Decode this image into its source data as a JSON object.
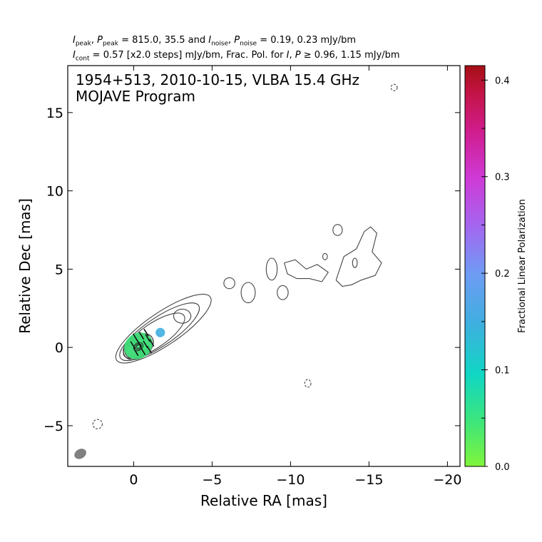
{
  "header": {
    "line1": {
      "i_peak_sub": "peak",
      "p_peak_sub": "peak",
      "peak_values": "= 815.0, 35.5 and",
      "i_noise_sub": "noise",
      "p_noise_sub": "noise",
      "noise_values": "= 0.19, 0.23 mJy/bm"
    },
    "line2": {
      "i_cont_sub": "cont",
      "cont_text": "= 0.57 [x2.0 steps] mJy/bm, Frac. Pol. for",
      "geq_values": "≥ 0.96, 1.15 mJy/bm"
    }
  },
  "chart_data": {
    "type": "contour",
    "title": "1954+513, 2010-10-15, VLBA 15.4 GHz",
    "subtitle": "MOJAVE Program",
    "xlabel": "Relative RA [mas]",
    "ylabel": "Relative Dec [mas]",
    "xlim": [
      4.2,
      -20.8
    ],
    "ylim": [
      -7.6,
      18.0
    ],
    "xticks": [
      0,
      -5,
      -10,
      -15,
      -20
    ],
    "xtick_labels": [
      "0",
      "−5",
      "−10",
      "−15",
      "−20"
    ],
    "yticks": [
      -5,
      0,
      5,
      10,
      15
    ],
    "ytick_labels": [
      "−5",
      "0",
      "5",
      "10",
      "15"
    ],
    "grid": false,
    "colorbar": {
      "label": "Fractional Linear Polarization",
      "range": [
        0.0,
        0.415
      ],
      "ticks": [
        0.0,
        0.1,
        0.2,
        0.3,
        0.4
      ],
      "tick_labels": [
        "0.0",
        "0.1",
        "0.2",
        "0.3",
        "0.4"
      ],
      "colors": [
        "#80f53a",
        "#3ee67a",
        "#10d6c4",
        "#40aee0",
        "#6e9cf4",
        "#a466f0",
        "#cf3ad6",
        "#cf1c8a",
        "#c41447",
        "#a50f15"
      ]
    },
    "core": {
      "x": -0.3,
      "y": 0.05,
      "peak_mjy_per_beam": 815.0
    },
    "beam": {
      "x": 3.4,
      "y": -6.8,
      "major_mas": 0.8,
      "minor_mas": 0.6,
      "pa_deg": -30
    },
    "contour_base_mjy_per_beam": 0.57,
    "contour_step_factor": 2.0,
    "jet_islands": [
      {
        "x": -3.1,
        "y": 2.0,
        "rx": 0.55,
        "ry": 0.45
      },
      {
        "x": -6.1,
        "y": 4.1,
        "rx": 0.35,
        "ry": 0.35
      },
      {
        "x": -7.3,
        "y": 3.5,
        "rx": 0.45,
        "ry": 0.65
      },
      {
        "x": -8.8,
        "y": 5.0,
        "rx": 0.35,
        "ry": 0.7
      },
      {
        "x": -9.5,
        "y": 3.5,
        "rx": 0.35,
        "ry": 0.45
      },
      {
        "x": -13.0,
        "y": 7.5,
        "rx": 0.3,
        "ry": 0.35
      },
      {
        "x": -12.2,
        "y": 5.8,
        "rx": 0.15,
        "ry": 0.2
      },
      {
        "x": -14.1,
        "y": 5.4,
        "rx": 0.15,
        "ry": 0.3
      }
    ],
    "negative_contours": [
      {
        "x": 2.3,
        "y": -4.9,
        "rx": 0.3,
        "ry": 0.3
      },
      {
        "x": -11.1,
        "y": -2.3,
        "rx": 0.2,
        "ry": 0.25
      },
      {
        "x": -16.6,
        "y": 16.6,
        "rx": 0.2,
        "ry": 0.2
      }
    ],
    "polarization_patches": [
      {
        "x": -0.3,
        "y": 0.1,
        "rx": 0.95,
        "ry": 0.8,
        "frac_pol": 0.06
      },
      {
        "x": -0.55,
        "y": 0.2,
        "rx": 0.3,
        "ry": 0.35,
        "frac_pol": 0.04
      },
      {
        "x": -1.7,
        "y": 0.95,
        "rx": 0.3,
        "ry": 0.3,
        "frac_pol": 0.16
      }
    ]
  }
}
